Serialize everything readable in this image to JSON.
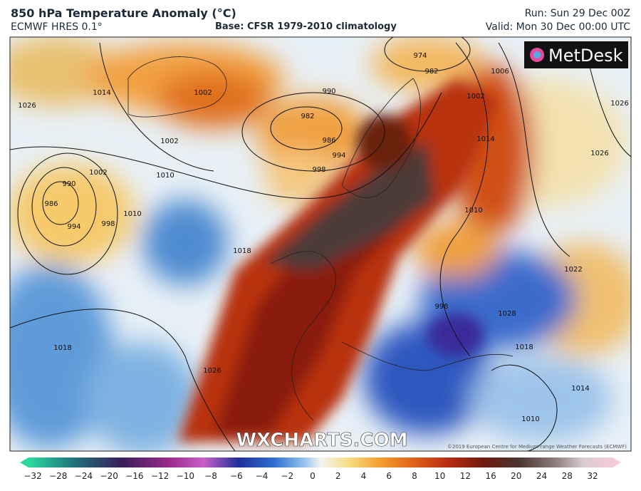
{
  "header": {
    "title": "850 hPa Temperature Anomaly (°C)",
    "model": "ECMWF HRES 0.1°",
    "base": "Base: CFSR 1979-2010 climatology",
    "run": "Run: Sun 29 Dec 00Z",
    "valid": "Valid: Mon 30 Dec 00:00 UTC"
  },
  "map": {
    "logo": "MetDesk",
    "watermark": "WXCHARTS.COM",
    "copyright": "©2019 European Centre for Medium-range Weather Forecasts (ECMWF)",
    "isobar_labels": [
      "1026",
      "1014",
      "1002",
      "990",
      "986",
      "994",
      "998",
      "1010",
      "1010",
      "1002",
      "1002",
      "990",
      "982",
      "986",
      "994",
      "998",
      "974",
      "982",
      "1002",
      "1006",
      "1014",
      "1010",
      "1026",
      "1026",
      "1022",
      "1018",
      "1018",
      "1026",
      "1018",
      "1014",
      "1010",
      "998",
      "1028"
    ]
  },
  "colorbar": {
    "labels": [
      "−32",
      "−28",
      "−24",
      "−20",
      "−16",
      "−12",
      "−10",
      "−8",
      "−6",
      "−4",
      "−2",
      "0",
      "2",
      "4",
      "6",
      "8",
      "10",
      "12",
      "16",
      "20",
      "24",
      "28",
      "32"
    ]
  }
}
